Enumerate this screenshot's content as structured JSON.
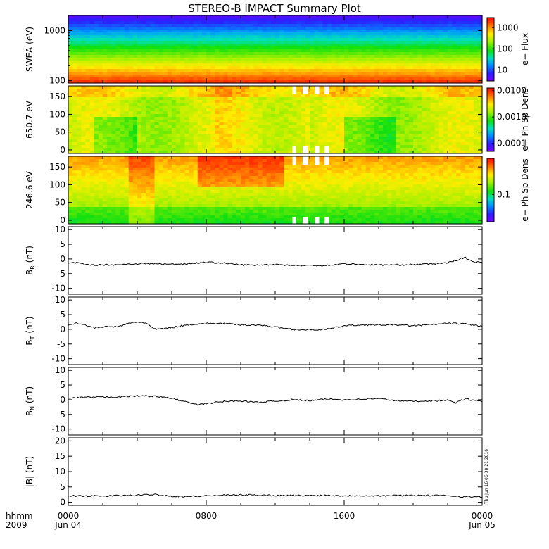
{
  "title": "STEREO-B IMPACT Summary Plot",
  "timestamp": "Thu Jun 16 06:38:21 2016",
  "x_axis": {
    "corner_labels": [
      "hhmm",
      "2009"
    ],
    "ticks": [
      {
        "hours": 0,
        "time": "0000",
        "date": "Jun 04"
      },
      {
        "hours": 8,
        "time": "0800",
        "date": ""
      },
      {
        "hours": 16,
        "time": "1600",
        "date": ""
      },
      {
        "hours": 24,
        "time": "0000",
        "date": "Jun 05"
      }
    ]
  },
  "chart_data": [
    {
      "type": "heatmap",
      "id": "swea",
      "ylabel": "SWEA (eV)",
      "yscale": "log",
      "ylim": [
        90,
        2000
      ],
      "yticks": [
        {
          "v": 100,
          "label": "100"
        },
        {
          "v": 1000,
          "label": "1000"
        }
      ],
      "colorbar": {
        "label": "e− Flux",
        "scale": "log",
        "range": [
          3,
          3000
        ],
        "ticks": [
          {
            "v": 10,
            "label": "10"
          },
          {
            "v": 100,
            "label": "100"
          },
          {
            "v": 1000,
            "label": "1000"
          }
        ]
      },
      "gaps": []
    },
    {
      "type": "heatmap",
      "id": "pad650",
      "ylabel": "650.7 eV",
      "yscale": "linear",
      "ylim": [
        -10,
        180
      ],
      "yticks": [
        {
          "v": 0,
          "label": "0"
        },
        {
          "v": 50,
          "label": "50"
        },
        {
          "v": 100,
          "label": "100"
        },
        {
          "v": 150,
          "label": "150"
        }
      ],
      "colorbar": {
        "label": "e− Ph Sp Dens",
        "scale": "log",
        "range": [
          5e-05,
          0.0125
        ],
        "ticks": [
          {
            "v": 0.0001,
            "label": "0.0001"
          },
          {
            "v": 0.001,
            "label": "0.0010"
          },
          {
            "v": 0.01,
            "label": "0.0100"
          }
        ]
      },
      "gaps": [
        [
          13.0,
          13.2
        ],
        [
          13.6,
          13.9
        ],
        [
          14.3,
          14.55
        ],
        [
          14.85,
          15.1
        ]
      ]
    },
    {
      "type": "heatmap",
      "id": "pad246",
      "ylabel": "246.6 eV",
      "yscale": "linear",
      "ylim": [
        -10,
        180
      ],
      "yticks": [
        {
          "v": 0,
          "label": "0"
        },
        {
          "v": 50,
          "label": "50"
        },
        {
          "v": 100,
          "label": "100"
        },
        {
          "v": 150,
          "label": "150"
        }
      ],
      "colorbar": {
        "label": "e− Ph Sp Dens",
        "scale": "log",
        "range": [
          0.03,
          0.5
        ],
        "ticks": [
          {
            "v": 0.1,
            "label": "0.1"
          }
        ]
      },
      "gaps": [
        [
          13.0,
          13.2
        ],
        [
          13.6,
          13.9
        ],
        [
          14.3,
          14.55
        ],
        [
          14.85,
          15.1
        ]
      ]
    },
    {
      "type": "line",
      "id": "br",
      "ylabel": [
        "B",
        "R",
        "(nT)"
      ],
      "ylim": [
        -12,
        11
      ],
      "yticks": [
        -10,
        -5,
        0,
        5,
        10
      ],
      "x": [
        0,
        0.5,
        1,
        2,
        3,
        4,
        5,
        6,
        7,
        8,
        9,
        10,
        11,
        12,
        13,
        14,
        15,
        16,
        17,
        18,
        19,
        20,
        21,
        22,
        22.5,
        23,
        23.5,
        24
      ],
      "y": [
        -1.5,
        -1.3,
        -2.0,
        -2.0,
        -1.9,
        -1.6,
        -1.6,
        -1.8,
        -1.6,
        -1.1,
        -1.4,
        -2.0,
        -2.1,
        -1.8,
        -2.2,
        -2.2,
        -2.2,
        -1.6,
        -1.9,
        -2.0,
        -2.0,
        -1.9,
        -1.7,
        -1.3,
        -0.4,
        0.5,
        -1.0,
        -1.2
      ]
    },
    {
      "type": "line",
      "id": "bt",
      "ylabel": [
        "B",
        "T",
        "(nT)"
      ],
      "ylim": [
        -12,
        11
      ],
      "yticks": [
        -10,
        -5,
        0,
        5,
        10
      ],
      "x": [
        0,
        0.5,
        1,
        1.5,
        2,
        3,
        3.5,
        4,
        4.5,
        5,
        5.5,
        6,
        7,
        8,
        9,
        10,
        11,
        12,
        13,
        14,
        15,
        16,
        17,
        18,
        19,
        20,
        21,
        22,
        23,
        24
      ],
      "y": [
        1.5,
        2.2,
        1.4,
        0.5,
        0.8,
        1.0,
        2.0,
        2.5,
        2.2,
        0.0,
        0.2,
        0.6,
        1.6,
        2.0,
        2.0,
        1.5,
        1.5,
        0.8,
        0.0,
        -0.2,
        0.0,
        1.2,
        1.5,
        1.5,
        1.5,
        1.2,
        1.6,
        2.0,
        1.9,
        1.0
      ]
    },
    {
      "type": "line",
      "id": "bn",
      "ylabel": [
        "B",
        "N",
        "(nT)"
      ],
      "ylim": [
        -12,
        11
      ],
      "yticks": [
        -10,
        -5,
        0,
        5,
        10
      ],
      "x": [
        0,
        1,
        2,
        3,
        4,
        5,
        6,
        7,
        7.5,
        8,
        9,
        10,
        11,
        12,
        13,
        14,
        15,
        16,
        17,
        18,
        19,
        20,
        21,
        22,
        22.5,
        23,
        24
      ],
      "y": [
        0.5,
        0.8,
        0.9,
        1.0,
        1.3,
        1.2,
        0.5,
        -1.0,
        -1.8,
        -1.3,
        -0.6,
        -0.4,
        -0.9,
        -0.5,
        0.0,
        -0.3,
        0.2,
        0.0,
        0.2,
        0.4,
        -0.3,
        -0.5,
        -0.4,
        -0.2,
        -1.0,
        0.3,
        -0.7
      ]
    },
    {
      "type": "line",
      "id": "bmag",
      "ylabel": [
        "|B| (nT)"
      ],
      "ylim": [
        -1,
        21
      ],
      "yticks": [
        0,
        5,
        10,
        15,
        20
      ],
      "x": [
        0,
        1,
        2,
        3,
        4,
        5,
        6,
        7,
        8,
        9,
        10,
        11,
        12,
        13,
        14,
        15,
        16,
        17,
        18,
        19,
        20,
        21,
        22,
        23,
        24
      ],
      "y": [
        2.1,
        2.1,
        2.0,
        2.2,
        2.3,
        2.6,
        2.0,
        1.9,
        2.1,
        2.3,
        2.4,
        2.4,
        2.2,
        2.2,
        2.2,
        2.3,
        2.1,
        2.2,
        2.1,
        2.2,
        2.3,
        2.2,
        2.2,
        1.8,
        1.8
      ]
    }
  ]
}
